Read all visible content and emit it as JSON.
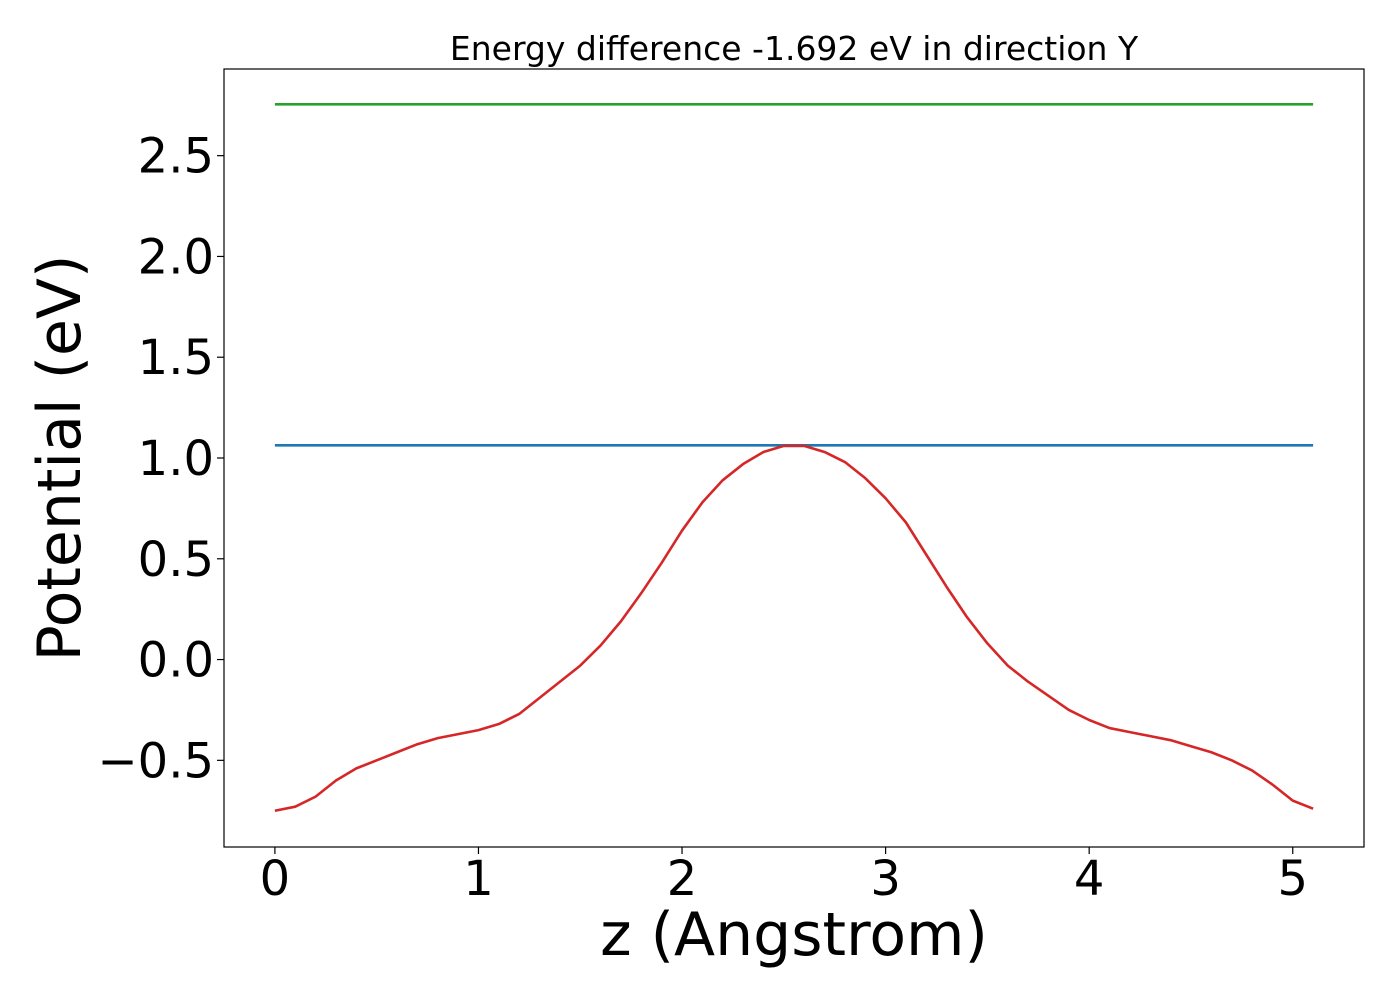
{
  "chart_data": {
    "type": "line",
    "title": "Energy difference -1.692 eV in direction Y",
    "xlabel": "z (Angstrom)",
    "ylabel": "Potential (eV)",
    "xlim": [
      -0.25,
      5.35
    ],
    "ylim": [
      -0.93,
      2.93
    ],
    "xticks": [
      0,
      1,
      2,
      3,
      4,
      5
    ],
    "xtick_labels": [
      "0",
      "1",
      "2",
      "3",
      "4",
      "5"
    ],
    "yticks": [
      -0.5,
      0.0,
      0.5,
      1.0,
      1.5,
      2.0,
      2.5
    ],
    "ytick_labels": [
      "−0.5",
      "0.0",
      "0.5",
      "1.0",
      "1.5",
      "2.0",
      "2.5"
    ],
    "grid": false,
    "legend": "none",
    "series": [
      {
        "color": "#2ca02c",
        "x": [
          0,
          5.1
        ],
        "y": [
          2.755,
          2.755
        ]
      },
      {
        "color": "#1f77b4",
        "x": [
          0,
          5.1
        ],
        "y": [
          1.063,
          1.063
        ]
      },
      {
        "color": "#d62728",
        "x": [
          0,
          0.1,
          0.2,
          0.3,
          0.4,
          0.5,
          0.6,
          0.7,
          0.8,
          0.9,
          1.0,
          1.1,
          1.2,
          1.3,
          1.4,
          1.5,
          1.6,
          1.7,
          1.8,
          1.9,
          2.0,
          2.1,
          2.2,
          2.3,
          2.4,
          2.5,
          2.6,
          2.7,
          2.8,
          2.9,
          3.0,
          3.1,
          3.2,
          3.3,
          3.4,
          3.5,
          3.6,
          3.7,
          3.8,
          3.9,
          4.0,
          4.1,
          4.2,
          4.3,
          4.4,
          4.5,
          4.6,
          4.7,
          4.8,
          4.9,
          5.0,
          5.1
        ],
        "y": [
          -0.75,
          -0.73,
          -0.68,
          -0.6,
          -0.54,
          -0.5,
          -0.46,
          -0.42,
          -0.39,
          -0.37,
          -0.35,
          -0.32,
          -0.27,
          -0.19,
          -0.11,
          -0.03,
          0.07,
          0.19,
          0.33,
          0.48,
          0.64,
          0.78,
          0.89,
          0.97,
          1.03,
          1.06,
          1.06,
          1.03,
          0.98,
          0.9,
          0.8,
          0.68,
          0.52,
          0.36,
          0.21,
          0.08,
          -0.03,
          -0.11,
          -0.18,
          -0.25,
          -0.3,
          -0.34,
          -0.36,
          -0.38,
          -0.4,
          -0.43,
          -0.46,
          -0.5,
          -0.55,
          -0.62,
          -0.7,
          -0.74
        ]
      }
    ]
  }
}
